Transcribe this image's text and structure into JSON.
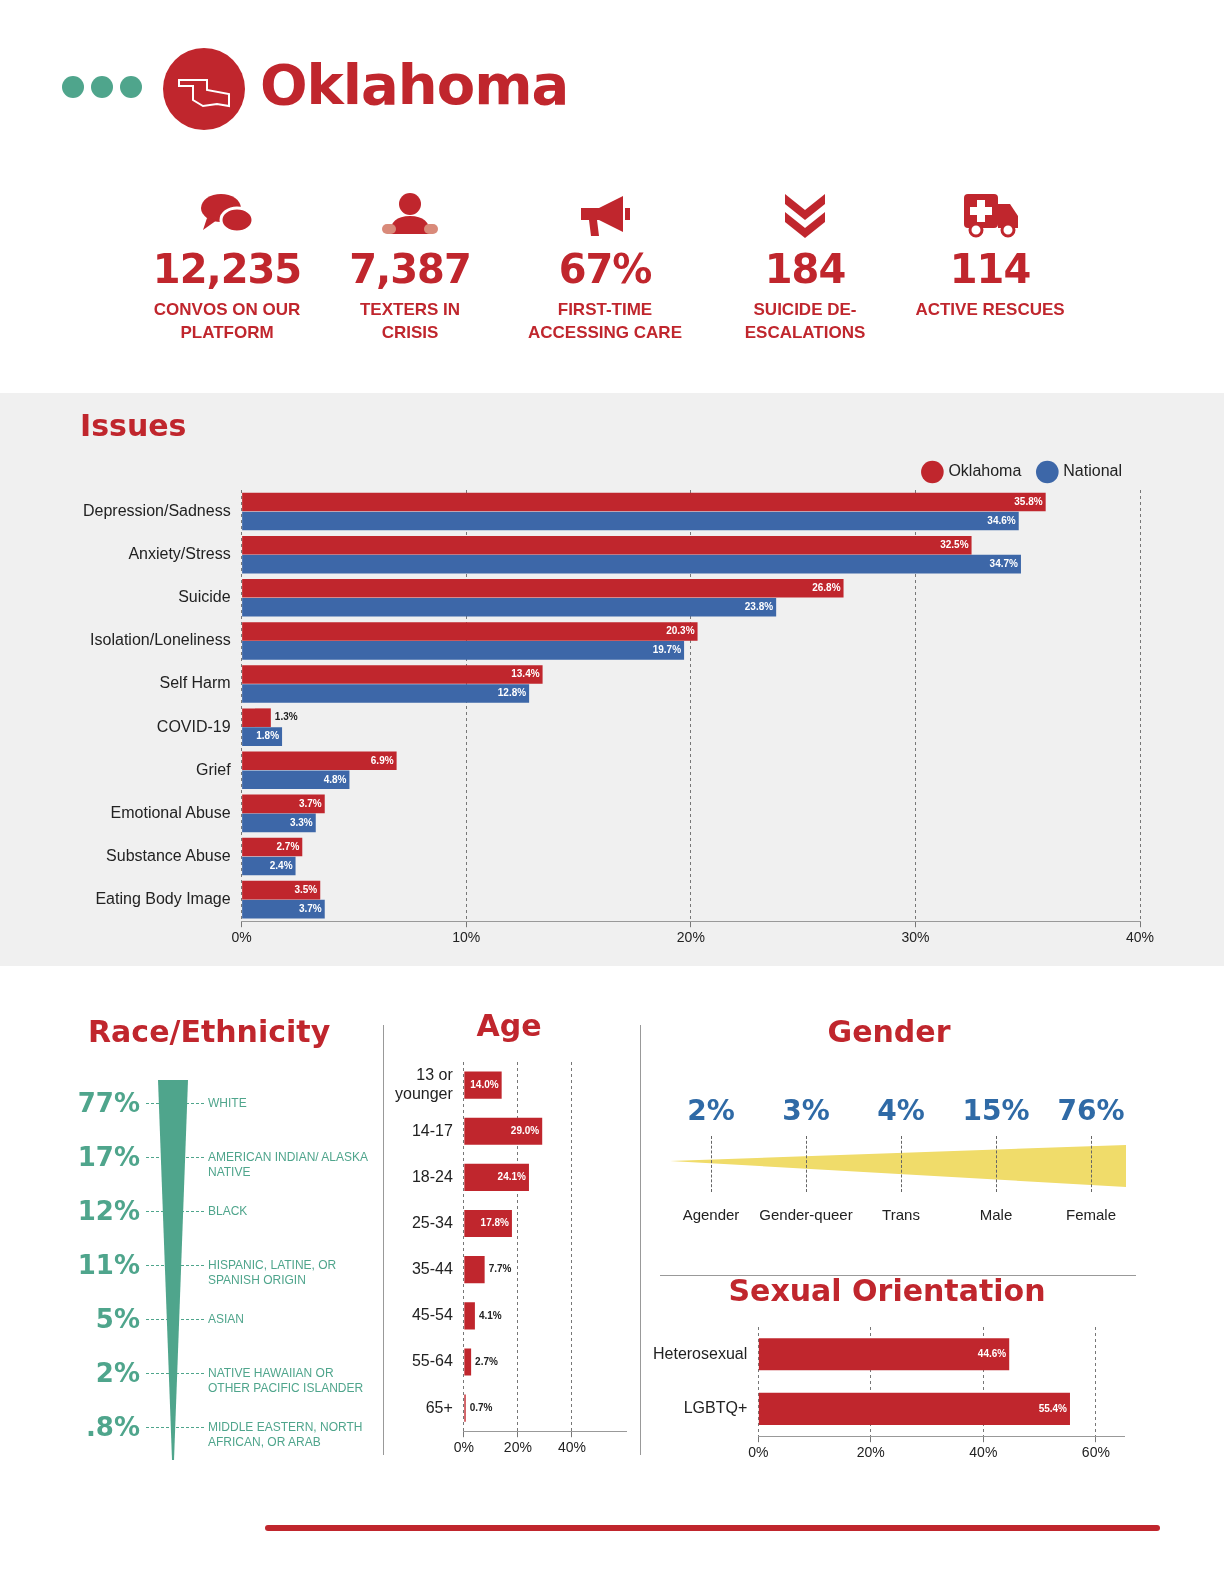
{
  "chart_data": [
    {
      "type": "other",
      "title": "Oklahoma",
      "categories": [
        "CONVOS ON OUR PLATFORM",
        "TEXTERS IN CRISIS",
        "FIRST-TIME ACCESSING CARE",
        "SUICIDE DE-ESCALATIONS",
        "ACTIVE RESCUES"
      ],
      "values": [
        12235,
        7387,
        67,
        184,
        114
      ],
      "value_labels": [
        "12,235",
        "7,387",
        "67%",
        "184",
        "114"
      ]
    },
    {
      "type": "bar",
      "title": "Issues",
      "orientation": "horizontal",
      "categories": [
        "Depression/Sadness",
        "Anxiety/Stress",
        "Suicide",
        "Isolation/Loneliness",
        "Self Harm",
        "COVID-19",
        "Grief",
        "Emotional Abuse",
        "Substance Abuse",
        "Eating Body Image"
      ],
      "series": [
        {
          "name": "Oklahoma",
          "color": "#c0262d",
          "values": [
            35.8,
            32.5,
            26.8,
            20.3,
            13.4,
            1.3,
            6.9,
            3.7,
            2.7,
            3.5
          ],
          "value_labels": [
            "35.8%",
            "32.5%",
            "26.8%",
            "20.3%",
            "13.4%",
            "1.3%",
            "6.9%",
            "3.7%",
            "2.7%",
            "3.5%"
          ]
        },
        {
          "name": "National",
          "color": "#3d67a8",
          "values": [
            34.6,
            34.7,
            23.8,
            19.7,
            12.8,
            1.8,
            4.8,
            3.3,
            2.4,
            3.7
          ],
          "value_labels": [
            "34.6%",
            "34.7%",
            "23.8%",
            "19.7%",
            "12.8%",
            "1.8%",
            "4.8%",
            "3.3%",
            "2.4%",
            "3.7%"
          ]
        }
      ],
      "xlim": [
        0,
        40
      ],
      "xticks": [
        {
          "value": 0,
          "label": "0%"
        },
        {
          "value": 10,
          "label": "10%"
        },
        {
          "value": 20,
          "label": "20%"
        },
        {
          "value": 30,
          "label": "30%"
        },
        {
          "value": 40,
          "label": "40%"
        }
      ],
      "grid": "x",
      "legend": "top right"
    },
    {
      "type": "other",
      "title": "Race/Ethnicity",
      "categories": [
        "WHITE",
        "AMERICAN INDIAN/ ALASKA NATIVE",
        "BLACK",
        "HISPANIC, LATINE, OR SPANISH ORIGIN",
        "ASIAN",
        "NATIVE HAWAIIAN OR OTHER PACIFIC ISLANDER",
        "MIDDLE EASTERN, NORTH AFRICAN, OR ARAB"
      ],
      "values": [
        77,
        17,
        12,
        11,
        5,
        2,
        0.8
      ],
      "value_labels": [
        "77%",
        "17%",
        "12%",
        "11%",
        "5%",
        "2%",
        ".8%"
      ]
    },
    {
      "type": "bar",
      "title": "Age",
      "orientation": "horizontal",
      "categories": [
        "13 or younger",
        "14-17",
        "18-24",
        "25-34",
        "35-44",
        "45-54",
        "55-64",
        "65+"
      ],
      "values": [
        14.0,
        29.0,
        24.1,
        17.8,
        7.7,
        4.1,
        2.7,
        0.7
      ],
      "value_labels": [
        "14.0%",
        "29.0%",
        "24.1%",
        "17.8%",
        "7.7%",
        "4.1%",
        "2.7%",
        "0.7%"
      ],
      "color": "#c0262d",
      "xlim": [
        0,
        60
      ],
      "xticks": [
        {
          "value": 0,
          "label": "0%"
        },
        {
          "value": 20,
          "label": "20%"
        },
        {
          "value": 40,
          "label": "40%"
        }
      ],
      "grid": "x"
    },
    {
      "type": "other",
      "title": "Gender",
      "categories": [
        "Agender",
        "Gender-queer",
        "Trans",
        "Male",
        "Female"
      ],
      "values": [
        2,
        3,
        4,
        15,
        76
      ],
      "value_labels": [
        "2%",
        "3%",
        "4%",
        "15%",
        "76%"
      ]
    },
    {
      "type": "bar",
      "title": "Sexual Orientation",
      "orientation": "horizontal",
      "categories": [
        "Heterosexual",
        "LGBTQ+"
      ],
      "values": [
        44.6,
        55.4
      ],
      "value_labels": [
        "44.6%",
        "55.4%"
      ],
      "color": "#c0262d",
      "xlim": [
        0,
        65
      ],
      "xticks": [
        {
          "value": 0,
          "label": "0%"
        },
        {
          "value": 20,
          "label": "20%"
        },
        {
          "value": 40,
          "label": "40%"
        },
        {
          "value": 60,
          "label": "60%"
        }
      ],
      "grid": "x"
    }
  ]
}
